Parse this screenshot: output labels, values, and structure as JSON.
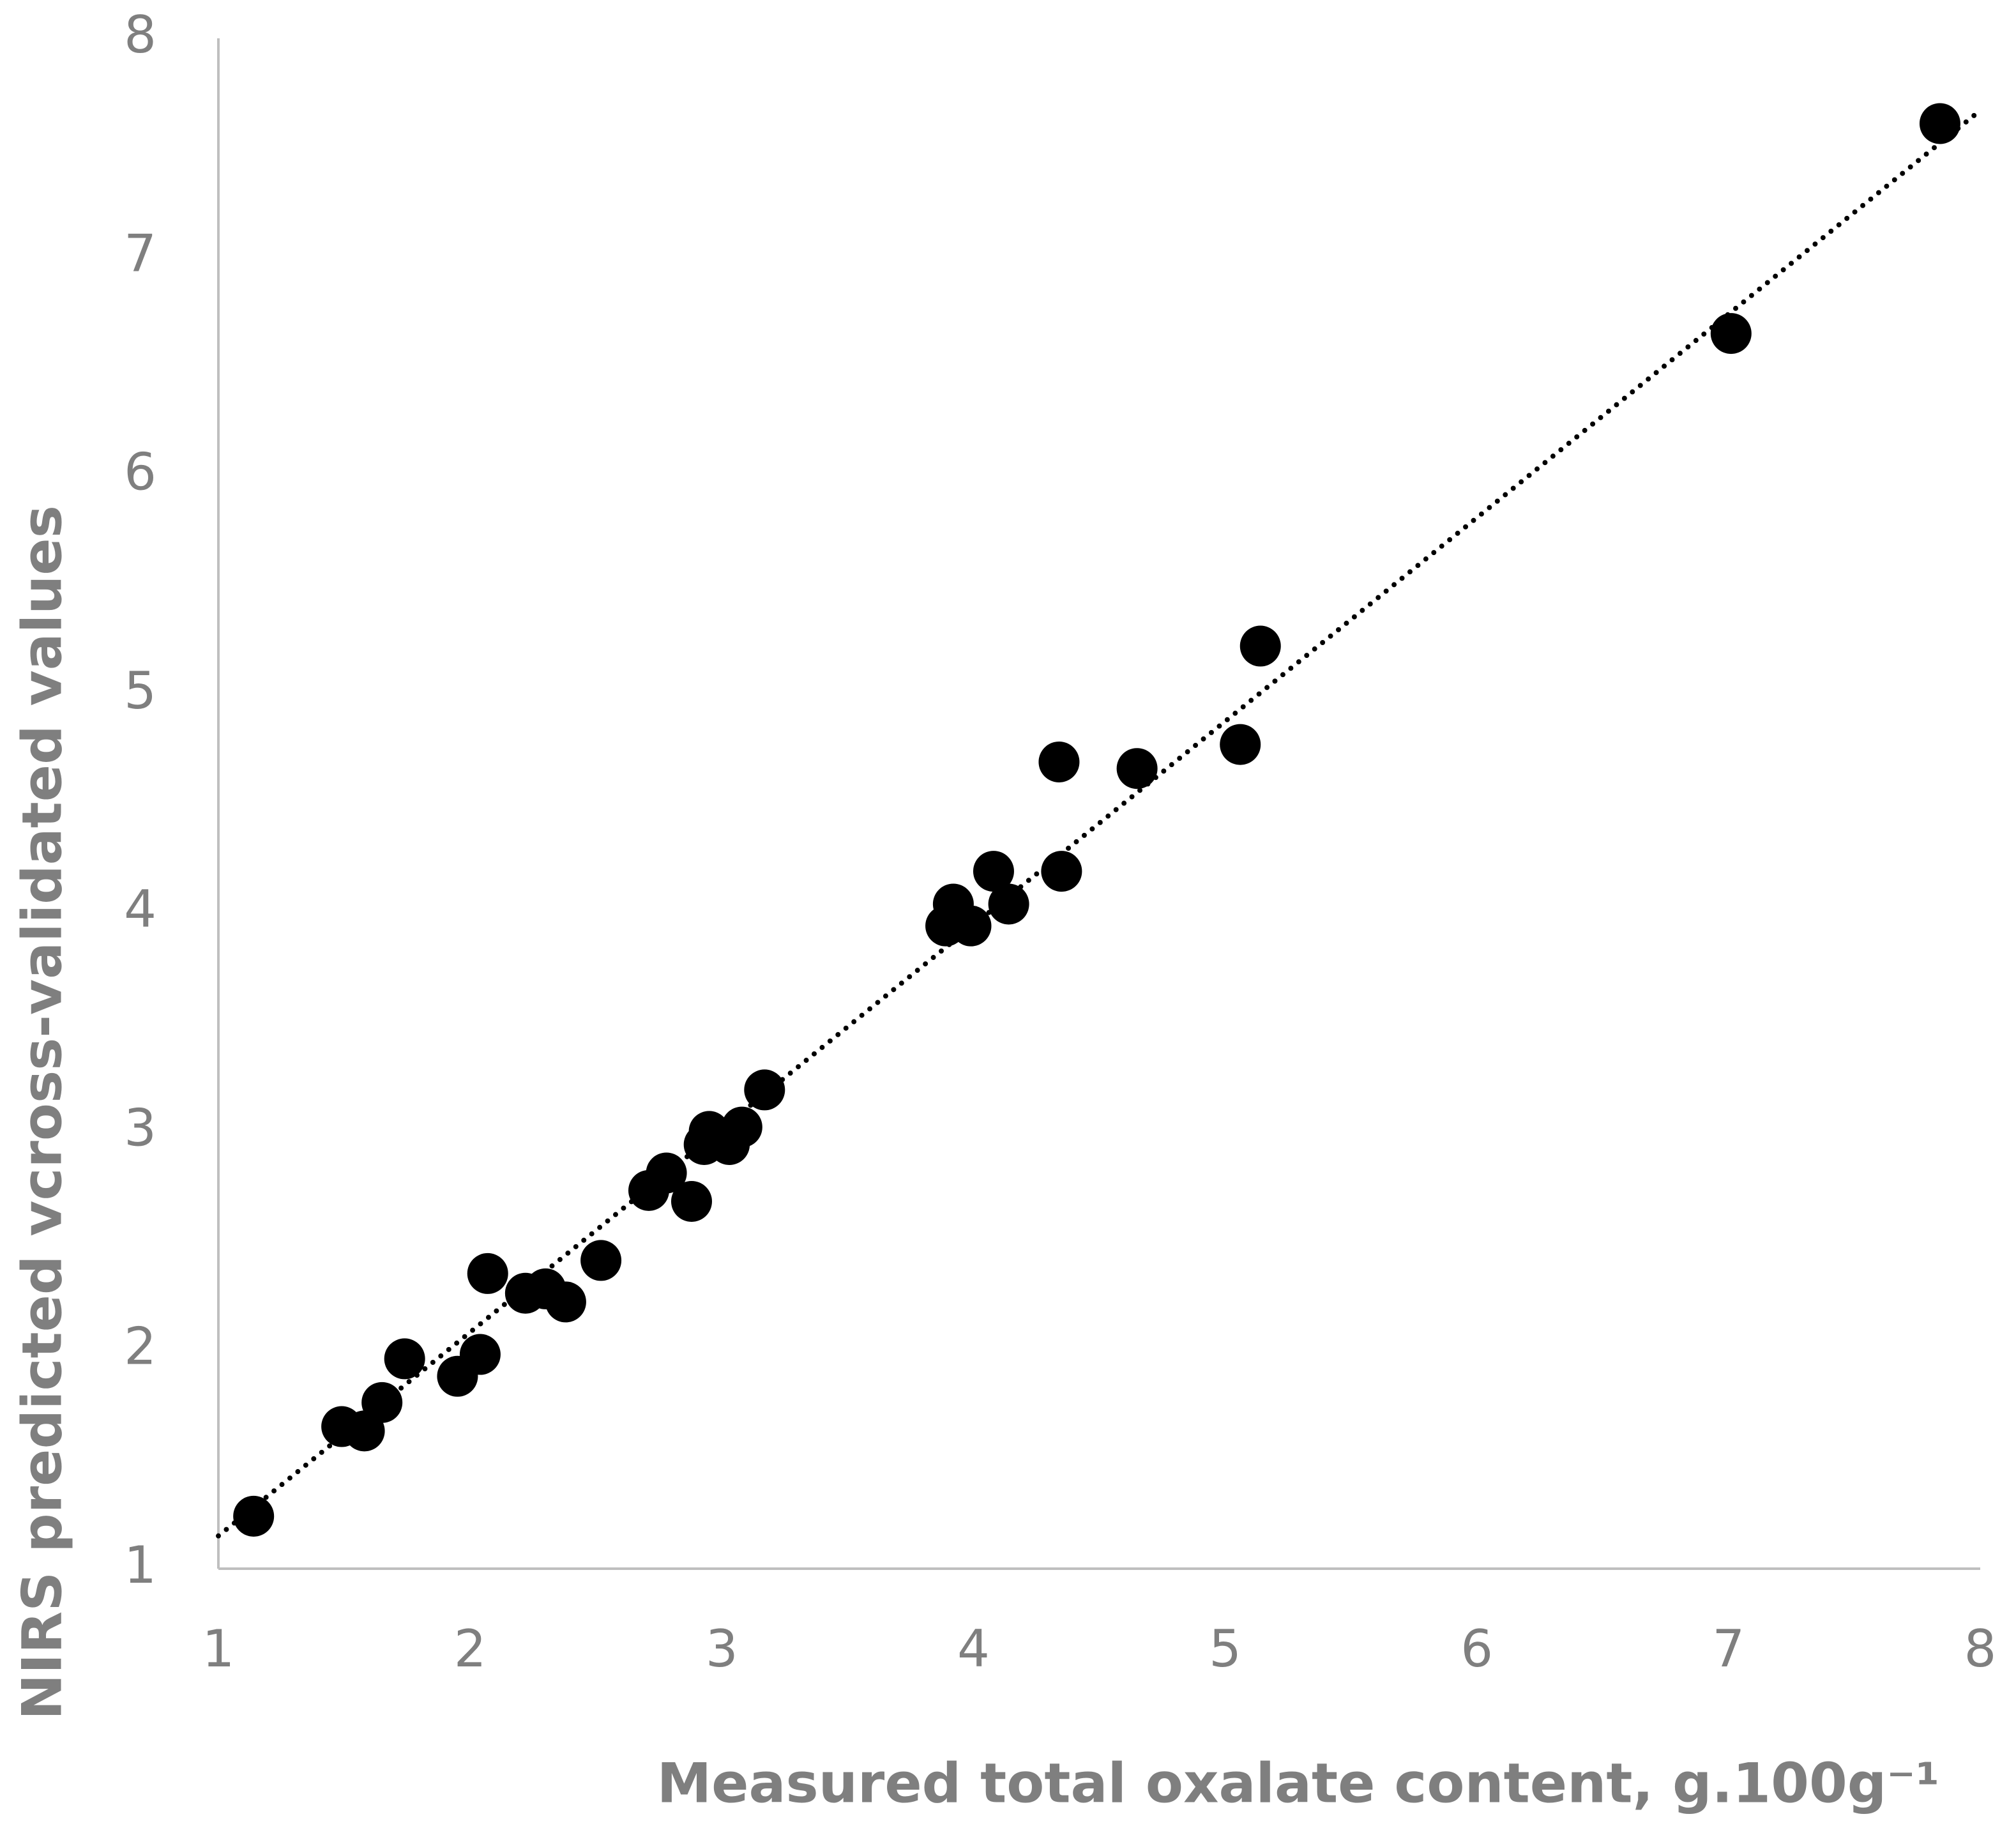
{
  "chart_data": {
    "type": "scatter",
    "x_label": "Measured total oxalate content, g.100g⁻¹",
    "y_label": "NIRS predicted vcross-validated values",
    "xlim": [
      1,
      8
    ],
    "ylim": [
      1,
      8
    ],
    "xticks": [
      1,
      2,
      3,
      4,
      5,
      6,
      7,
      8
    ],
    "yticks": [
      1,
      2,
      3,
      4,
      5,
      6,
      7,
      8
    ],
    "color": "#000000",
    "series": [
      {
        "x": [
          1.14,
          1.49,
          1.58,
          1.65,
          1.74,
          1.95,
          2.04,
          2.07,
          2.22,
          2.3,
          2.38,
          2.52,
          2.71,
          2.78,
          2.88,
          2.93,
          2.95,
          3.03,
          3.08,
          3.17,
          3.89,
          3.92,
          3.99,
          4.08,
          4.14,
          4.34,
          4.35,
          4.65,
          5.06,
          5.14,
          7.01,
          7.84
        ],
        "values": [
          1.24,
          1.65,
          1.63,
          1.76,
          1.96,
          1.88,
          1.98,
          2.35,
          2.26,
          2.28,
          2.22,
          2.41,
          2.73,
          2.81,
          2.68,
          2.94,
          3.0,
          2.94,
          3.02,
          3.19,
          3.94,
          4.04,
          3.94,
          4.19,
          4.04,
          4.69,
          4.19,
          4.66,
          4.77,
          5.22,
          6.65,
          7.61
        ]
      }
    ],
    "trendline": {
      "x": [
        1,
        8
      ],
      "values": [
        1.15,
        7.67
      ]
    }
  }
}
